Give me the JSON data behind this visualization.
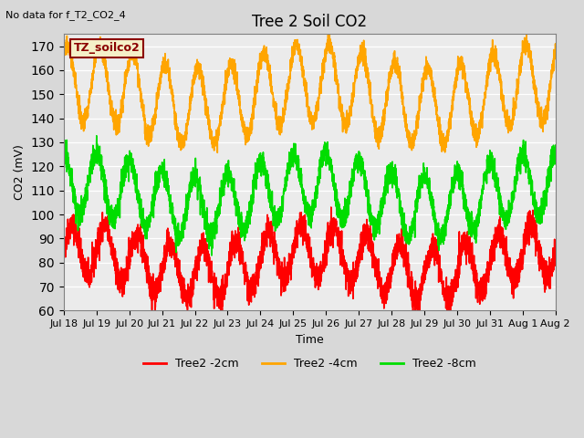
{
  "title": "Tree 2 Soil CO2",
  "no_data_text": "No data for f_T2_CO2_4",
  "xlabel": "Time",
  "ylabel": "CO2 (mV)",
  "ylim": [
    60,
    175
  ],
  "yticks": [
    60,
    70,
    80,
    90,
    100,
    110,
    120,
    130,
    140,
    150,
    160,
    170
  ],
  "x_end": 360,
  "x_tick_positions": [
    0,
    24,
    48,
    72,
    96,
    120,
    144,
    168,
    192,
    216,
    240,
    264,
    288,
    312,
    336,
    360
  ],
  "x_tick_labels": [
    "Jul 18",
    "Jul 19",
    "Jul 20",
    "Jul 21",
    "Jul 22",
    "Jul 23",
    "Jul 24",
    "Jul 25",
    "Jul 26",
    "Jul 27",
    "Jul 28",
    "Jul 29",
    "Jul 30",
    "Jul 31",
    "Aug 1",
    "Aug 2"
  ],
  "series": [
    {
      "name": "Tree2 -2cm",
      "color": "#ff0000",
      "base": 80,
      "amp": 11,
      "period": 24,
      "phase": 0.0,
      "noise": 3.0
    },
    {
      "name": "Tree2 -4cm",
      "color": "#ffa500",
      "base": 150,
      "amp": 16,
      "period": 24,
      "phase": 0.3,
      "noise": 2.0
    },
    {
      "name": "Tree2 -8cm",
      "color": "#00dd00",
      "base": 108,
      "amp": 13,
      "period": 24,
      "phase": 0.5,
      "noise": 2.5
    }
  ],
  "legend_box_facecolor": "#f5f0c8",
  "legend_box_edgecolor": "#8b0000",
  "legend_box_text": "TZ_soilco2",
  "legend_box_textcolor": "#8b0000",
  "fig_facecolor": "#d8d8d8",
  "plot_facecolor": "#ebebeb",
  "linewidth": 1.2,
  "tick_fontsize": 8,
  "label_fontsize": 9,
  "title_fontsize": 12
}
